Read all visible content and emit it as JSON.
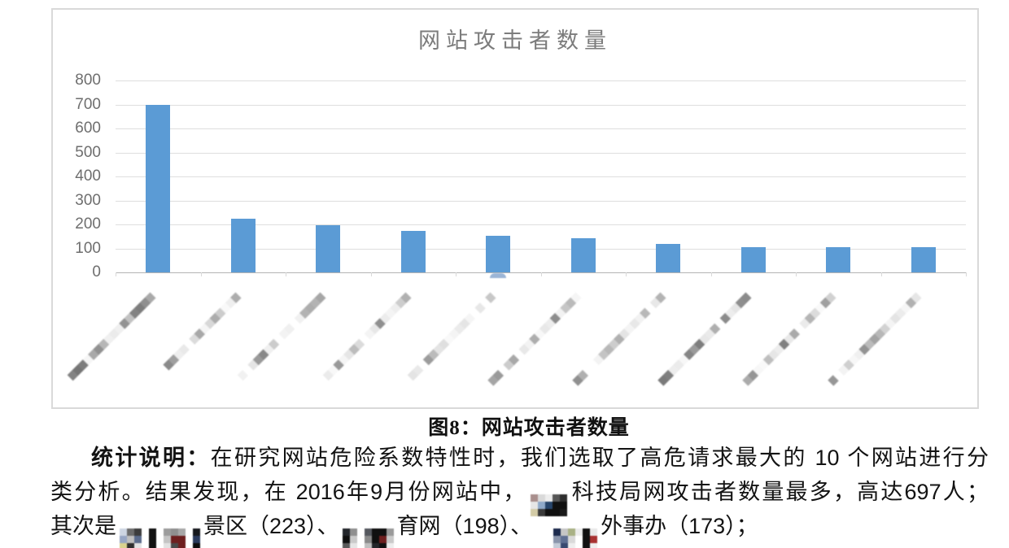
{
  "chart": {
    "title": "网站攻击者数量",
    "title_color": "#7c7c7c",
    "bar_color": "#5b9bd5",
    "grid_color": "#dedede",
    "axis_color": "#b3b3b3",
    "border_color": "#d9d9d9",
    "tick_label_color": "#6e6e6e",
    "y_ticks": [
      800,
      700,
      600,
      500,
      400,
      300,
      200,
      100,
      0
    ]
  },
  "chart_data": {
    "type": "bar",
    "title": "网站攻击者数量",
    "categories": [
      "",
      "",
      "",
      "",
      "",
      "",
      "",
      "",
      "",
      ""
    ],
    "categories_note": "x-axis category labels are pixelated (redacted) in the screenshot, drawn rotated 45°",
    "values": [
      697,
      223,
      198,
      173,
      151,
      143,
      117,
      106,
      105,
      104
    ],
    "xlabel": "",
    "ylabel": "",
    "ylim": [
      0,
      800
    ],
    "ytick_step": 100,
    "grid": true,
    "legend": false,
    "bar_color": "#5b9bd5",
    "known_from_text": {
      "科技局网": 697,
      "景区": 223,
      "育网": 198,
      "外事办": 173
    }
  },
  "caption": "图8：网站攻击者数量",
  "body": {
    "lines": [
      {
        "indent": true,
        "justify": true,
        "segments": [
          {
            "text": "统计说明：",
            "bold": true
          },
          {
            "text": "在研究网站危险系数特性时，我们选取了高危请求最大的 10 个网站进行分"
          }
        ]
      },
      {
        "justify": true,
        "segments": [
          {
            "text": "类分析。结果发现，在 2016年9月份网站中，"
          },
          {
            "redaction": "m1"
          },
          {
            "text": "科技局网攻击者数量最多，高达697人；"
          }
        ]
      },
      {
        "segments": [
          {
            "text": "其次是"
          },
          {
            "redaction": "m2"
          },
          {
            "text": "景区（223）、"
          },
          {
            "redaction": "m3"
          },
          {
            "text": "育网（198）、"
          },
          {
            "redaction": "m4",
            "gap": true
          },
          {
            "text": "外事办（173）；"
          }
        ]
      }
    ]
  },
  "redactions": {
    "m1": [
      [
        "#a98f8d",
        "#d9d9d9",
        "#ededed",
        "#565656",
        "#2e2e2e"
      ],
      [
        "#e6e6e6",
        "#8fa9c9",
        "#27456b",
        "#101010",
        "#101010"
      ],
      [
        "#d3cba6",
        "#3a3a3a",
        "#101010",
        "#101010",
        "#1a1a1a"
      ]
    ],
    "m2": [
      [
        "#cdd5e2",
        "#6b6b6b",
        "#3c3c3c",
        "#ffffff",
        "#111111",
        "#ffffff",
        "#9c9c9c",
        "#8f8f8f",
        "#a8a8a8",
        "#ffffff",
        "#16181c"
      ],
      [
        "#97a6c4",
        "#bfbfbf",
        "#5b6b8c",
        "#ffffff",
        "#111111",
        "#ffffff",
        "#c4c4c4",
        "#6e1f1f",
        "#6e1f1f",
        "#ffffff",
        "#2a3a5c"
      ],
      [
        "#d9d28e",
        "#2f2f2f",
        "#e4e4e4",
        "#ffffff",
        "#111111",
        "#ffffff",
        "#e2e2e2",
        "#4a4a4a",
        "#6e1f1f",
        "#ffffff",
        "#0c0c0c"
      ]
    ],
    "m3": [
      [
        "#23262b",
        "#8f8f8f",
        "#ffffff",
        "#55585e",
        "#101010",
        "#101010",
        "#9a9a9a"
      ],
      [
        "#0f0f0f",
        "#c9c9c9",
        "#ffffff",
        "#8a8a8a",
        "#101010",
        "#6e1f1f",
        "#c9c9c9"
      ],
      [
        "#5a5a5a",
        "#e6e6e6",
        "#ffffff",
        "#bfbfbf",
        "#24262a",
        "#101010",
        "#ededed"
      ]
    ],
    "m4": [
      [
        "#1d2b4e",
        "#c6c6c6",
        "#a9b185",
        "#ececec",
        "#111111",
        "#e8e8e8"
      ],
      [
        "#8994ab",
        "#5f6f93",
        "#d9d9d9",
        "#ffffff",
        "#111111",
        "#a83131"
      ],
      [
        "#c3cbd8",
        "#394970",
        "#eeeeee",
        "#ffffff",
        "#111111",
        "#efefef"
      ]
    ]
  },
  "artifact": {
    "color": "#9bb5d6",
    "under_bar_index": 4
  }
}
